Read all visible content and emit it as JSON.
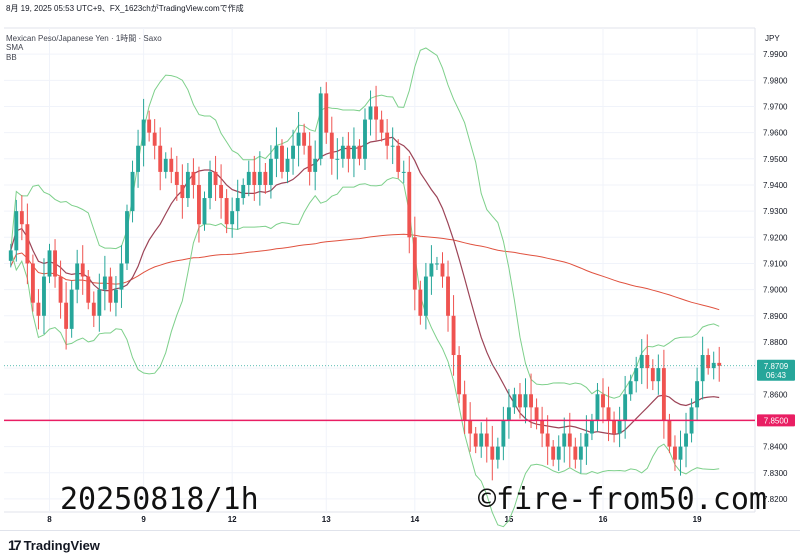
{
  "caption": "8月 19, 2025 05:53 UTC+9、FX_1623chがTradingView.comで作成",
  "legend": {
    "line1": "Mexican Peso/Japanese Yen · 1時間 · Saxo",
    "line2": "SMA",
    "line3": "BB"
  },
  "currency": "JPY",
  "price_badge": {
    "value": "7.8709",
    "timer": "06:43",
    "color": "#26a69a"
  },
  "level_badge": {
    "value": "7.8500",
    "color": "#e91e63"
  },
  "watermark_left": "20250818/1h",
  "watermark_right": "©fire-from50.com",
  "brand": {
    "icon": "tradingview-logo-icon",
    "text": "TradingView"
  },
  "colors": {
    "up": "#26a69a",
    "down": "#ef5350",
    "bb": "#7ed08b",
    "bb_mid": "#9c4457",
    "sma_long": "#e0523f",
    "hline": "#e91e63",
    "last_price": "#26a69a"
  },
  "chart_data": {
    "type": "candlestick",
    "title": "Mexican Peso/Japanese Yen · 1時間 · Saxo",
    "xlabel": "",
    "ylabel": "JPY",
    "ylim": [
      7.815,
      8.0
    ],
    "y_ticks": [
      "7.9900",
      "7.9800",
      "7.9700",
      "7.9600",
      "7.9500",
      "7.9400",
      "7.9300",
      "7.9200",
      "7.9100",
      "7.9000",
      "7.8900",
      "7.8800",
      "7.8700",
      "7.8600",
      "7.8500",
      "7.8400",
      "7.8300",
      "7.8200"
    ],
    "x_ticks": [
      {
        "label": "8",
        "bar": 7
      },
      {
        "label": "9",
        "bar": 24
      },
      {
        "label": "12",
        "bar": 40
      },
      {
        "label": "13",
        "bar": 57
      },
      {
        "label": "14",
        "bar": 73
      },
      {
        "label": "15",
        "bar": 90
      },
      {
        "label": "16",
        "bar": 107
      },
      {
        "label": "19",
        "bar": 124
      }
    ],
    "grid": true,
    "horizontal_line": 7.85,
    "last_price": 7.8709,
    "closes": [
      7.915,
      7.93,
      7.925,
      7.91,
      7.895,
      7.89,
      7.905,
      7.915,
      7.905,
      7.895,
      7.885,
      7.9,
      7.91,
      7.905,
      7.895,
      7.89,
      7.9,
      7.905,
      7.895,
      7.9,
      7.91,
      7.93,
      7.945,
      7.955,
      7.965,
      7.96,
      7.955,
      7.945,
      7.95,
      7.945,
      7.94,
      7.935,
      7.945,
      7.94,
      7.925,
      7.935,
      7.945,
      7.94,
      7.935,
      7.925,
      7.93,
      7.935,
      7.94,
      7.945,
      7.94,
      7.945,
      7.94,
      7.95,
      7.955,
      7.945,
      7.95,
      7.955,
      7.96,
      7.955,
      7.945,
      7.95,
      7.975,
      7.96,
      7.95,
      7.95,
      7.955,
      7.95,
      7.955,
      7.95,
      7.965,
      7.97,
      7.965,
      7.96,
      7.955,
      7.955,
      7.945,
      7.945,
      7.92,
      7.9,
      7.89,
      7.905,
      7.91,
      7.91,
      7.905,
      7.89,
      7.875,
      7.86,
      7.85,
      7.845,
      7.84,
      7.845,
      7.84,
      7.835,
      7.84,
      7.85,
      7.855,
      7.86,
      7.855,
      7.86,
      7.855,
      7.85,
      7.845,
      7.84,
      7.835,
      7.84,
      7.845,
      7.84,
      7.835,
      7.84,
      7.845,
      7.85,
      7.86,
      7.855,
      7.85,
      7.845,
      7.85,
      7.86,
      7.865,
      7.87,
      7.875,
      7.87,
      7.865,
      7.87,
      7.85,
      7.84,
      7.835,
      7.84,
      7.845,
      7.855,
      7.865,
      7.875,
      7.87,
      7.872,
      7.8709
    ]
  }
}
